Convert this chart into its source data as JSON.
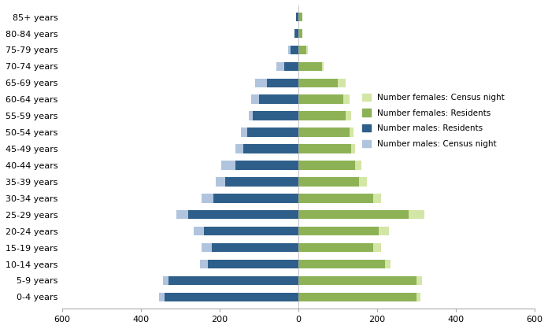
{
  "age_groups": [
    "0-4 years",
    "5-9 years",
    "10-14 years",
    "15-19 years",
    "20-24 years",
    "25-29 years",
    "30-34 years",
    "35-39 years",
    "40-44 years",
    "45-49 years",
    "50-54 years",
    "55-59 years",
    "60-64 years",
    "65-69 years",
    "70-74 years",
    "75-79 years",
    "80-84 years",
    "85+ years"
  ],
  "males_residents": [
    340,
    330,
    230,
    220,
    240,
    280,
    215,
    185,
    160,
    140,
    130,
    115,
    100,
    80,
    35,
    20,
    10,
    5
  ],
  "males_census_night": [
    355,
    345,
    250,
    245,
    265,
    310,
    245,
    210,
    195,
    160,
    145,
    125,
    120,
    110,
    55,
    25,
    10,
    5
  ],
  "females_residents": [
    300,
    300,
    220,
    190,
    205,
    280,
    190,
    155,
    145,
    135,
    130,
    120,
    115,
    100,
    60,
    20,
    10,
    10
  ],
  "females_census_night": [
    310,
    315,
    235,
    210,
    230,
    320,
    210,
    175,
    160,
    145,
    140,
    135,
    130,
    120,
    65,
    25,
    10,
    10
  ],
  "color_males_residents": "#2E5F8A",
  "color_males_census_night": "#B0C4DE",
  "color_females_residents": "#8DB255",
  "color_females_census_night": "#D4E6A5",
  "xlim": [
    -600,
    600
  ],
  "xticks": [
    -600,
    -400,
    -200,
    0,
    200,
    400,
    600
  ],
  "xticklabels": [
    "600",
    "400",
    "200",
    "0",
    "200",
    "400",
    "600"
  ],
  "legend_labels": [
    "Number females: Census night",
    "Number females: Residents",
    "Number males: Residents",
    "Number males: Census night"
  ],
  "legend_colors": [
    "#D4E6A5",
    "#8DB255",
    "#2E5F8A",
    "#B0C4DE"
  ],
  "bar_height": 0.55
}
